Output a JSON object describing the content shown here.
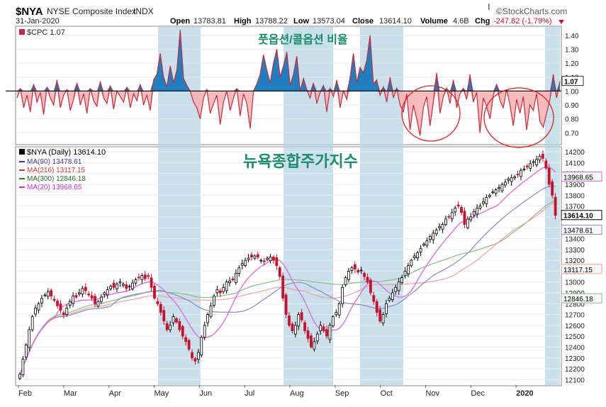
{
  "header": {
    "symbol": "$NYA",
    "name": "NYSE Composite Index",
    "exchange": "INDX",
    "date": "31-Jan-2020",
    "open_label": "Open",
    "open": "13783.81",
    "high_label": "High",
    "high": "13788.22",
    "low_label": "Low",
    "low": "13573.04",
    "close_label": "Close",
    "close": "13614.10",
    "volume_label": "Volume",
    "volume": "4.6B",
    "chg_label": "Chg",
    "chg": "-247.82 (-1.79%)",
    "brand": "©StockCharts.com"
  },
  "annotations": {
    "top_title": "풋옵션/콜옵션 비율",
    "bottom_title": "뉴욕종합주가지수"
  },
  "colors": {
    "cpc_line": "#c8283c",
    "cpc_fill_below": "#f6b4b4",
    "cpc_fill_above": "#1f7fbf",
    "shade": "#b7d6e6",
    "annotation_text": "#1a8c6c",
    "circle": "#e02020",
    "candle_up": "#000000",
    "candle_down": "#c8102e",
    "ma90": "#8888cc",
    "ma216": "#f0a0a0",
    "ma300": "#88bb88",
    "ma20": "#dd66dd"
  },
  "chart_data": [
    {
      "type": "line",
      "legend": "$CPC 1.07",
      "reference_line": 1.0,
      "last_value_label": "1.07",
      "y_ticks": [
        "1.40",
        "1.30",
        "1.20",
        "1.10",
        "1.00",
        "0.90",
        "0.80",
        "0.70"
      ],
      "ylim": [
        0.62,
        1.46
      ],
      "values": [
        0.95,
        1.02,
        0.88,
        0.97,
        0.85,
        1.05,
        0.92,
        0.99,
        0.83,
        1.03,
        0.95,
        0.9,
        1.08,
        0.88,
        0.97,
        1.01,
        0.86,
        0.94,
        1.06,
        0.9,
        0.98,
        0.84,
        1.02,
        0.93,
        0.89,
        1.07,
        0.95,
        0.91,
        1.04,
        0.87,
        1.0,
        0.96,
        0.92,
        1.03,
        0.88,
        0.98,
        0.93,
        1.05,
        0.9,
        0.97,
        0.86,
        1.08,
        1.12,
        1.27,
        1.1,
        1.03,
        1.18,
        1.06,
        1.15,
        1.44,
        1.09,
        1.04,
        1.0,
        0.92,
        0.88,
        0.8,
        0.95,
        1.01,
        0.84,
        0.91,
        0.97,
        0.76,
        0.92,
        1.0,
        0.86,
        0.95,
        1.02,
        0.82,
        0.98,
        0.91,
        0.73,
        1.0,
        1.05,
        1.12,
        1.26,
        1.15,
        1.06,
        1.2,
        1.3,
        1.1,
        1.18,
        1.28,
        1.04,
        1.12,
        1.25,
        1.0,
        1.09,
        1.01,
        0.95,
        1.06,
        0.91,
        0.99,
        1.04,
        0.85,
        1.02,
        0.96,
        1.08,
        0.88,
        1.0,
        0.94,
        1.1,
        1.27,
        1.06,
        1.17,
        1.13,
        1.22,
        1.4,
        1.05,
        1.08,
        0.97,
        1.03,
        0.92,
        1.1,
        0.95,
        1.02,
        0.9,
        0.85,
        0.98,
        0.72,
        0.9,
        0.8,
        0.68,
        0.88,
        0.96,
        0.75,
        0.92,
        1.13,
        0.84,
        0.96,
        1.02,
        0.91,
        1.08,
        0.88,
        0.98,
        1.02,
        0.94,
        1.12,
        0.92,
        0.99,
        0.7,
        0.95,
        0.89,
        0.8,
        0.97,
        1.05,
        0.93,
        0.88,
        1.01,
        0.9,
        0.75,
        0.94,
        0.84,
        0.96,
        0.72,
        0.9,
        0.86,
        0.98,
        0.78,
        0.74,
        0.84,
        0.94,
        1.12,
        0.95,
        1.07
      ]
    },
    {
      "type": "candlestick",
      "legend": "$NYA (Daily) 13614.10",
      "ma_legend": [
        "MA(90) 13478.61",
        "MA(216) 13117.15",
        "MA(300) 12846.18",
        "MA(20) 13968.65"
      ],
      "months": [
        "Feb",
        "Mar",
        "Apr",
        "May",
        "Jun",
        "Jul",
        "Aug",
        "Sep",
        "Oct",
        "Nov",
        "Dec",
        "2020"
      ],
      "y_ticks": [
        "14200",
        "14100",
        "14000",
        "13900",
        "13800",
        "13700",
        "13600",
        "13500",
        "13400",
        "13300",
        "13200",
        "13100",
        "13000",
        "12900",
        "12800",
        "12700",
        "12600",
        "12500",
        "12400",
        "12300",
        "12200",
        "12100"
      ],
      "ylim": [
        12050,
        14240
      ],
      "price_labels": [
        "13968.65",
        "13614.10",
        "13478.61",
        "13117.15",
        "12846.18"
      ],
      "close": [
        12150,
        12290,
        12420,
        12560,
        12680,
        12760,
        12800,
        12850,
        12880,
        12910,
        12870,
        12830,
        12780,
        12740,
        12700,
        12760,
        12820,
        12870,
        12860,
        12900,
        12940,
        12920,
        12880,
        12850,
        12800,
        12820,
        12860,
        12900,
        12930,
        12960,
        12950,
        12980,
        13000,
        12980,
        12940,
        12960,
        12990,
        13020,
        13040,
        13060,
        13030,
        13050,
        12950,
        12850,
        12800,
        12720,
        12640,
        12560,
        12600,
        12680,
        12630,
        12560,
        12500,
        12450,
        12380,
        12300,
        12270,
        12350,
        12490,
        12600,
        12700,
        12780,
        12870,
        12930,
        12900,
        12950,
        13000,
        13010,
        13020,
        13080,
        13130,
        13170,
        13200,
        13220,
        13230,
        13240,
        13230,
        13200,
        13190,
        13220,
        13230,
        13200,
        13150,
        13050,
        12850,
        12700,
        12600,
        12550,
        12600,
        12700,
        12650,
        12550,
        12480,
        12400,
        12450,
        12520,
        12600,
        12550,
        12500,
        12600,
        12680,
        12720,
        12800,
        12950,
        13040,
        13100,
        13130,
        13120,
        13090,
        13110,
        13050,
        13000,
        12900,
        12820,
        12720,
        12640,
        12700,
        12800,
        12850,
        12900,
        12950,
        13000,
        13040,
        13100,
        13150,
        13200,
        13240,
        13270,
        13310,
        13350,
        13380,
        13420,
        13450,
        13480,
        13510,
        13530,
        13580,
        13600,
        13640,
        13680,
        13700,
        13640,
        13530,
        13580,
        13600,
        13650,
        13680,
        13700,
        13740,
        13780,
        13800,
        13830,
        13850,
        13870,
        13900,
        13920,
        13950,
        13960,
        13970,
        13990,
        14030,
        14040,
        14060,
        14090,
        14110,
        14130,
        14160,
        14140,
        14050,
        13900,
        13800,
        13614
      ]
    }
  ]
}
